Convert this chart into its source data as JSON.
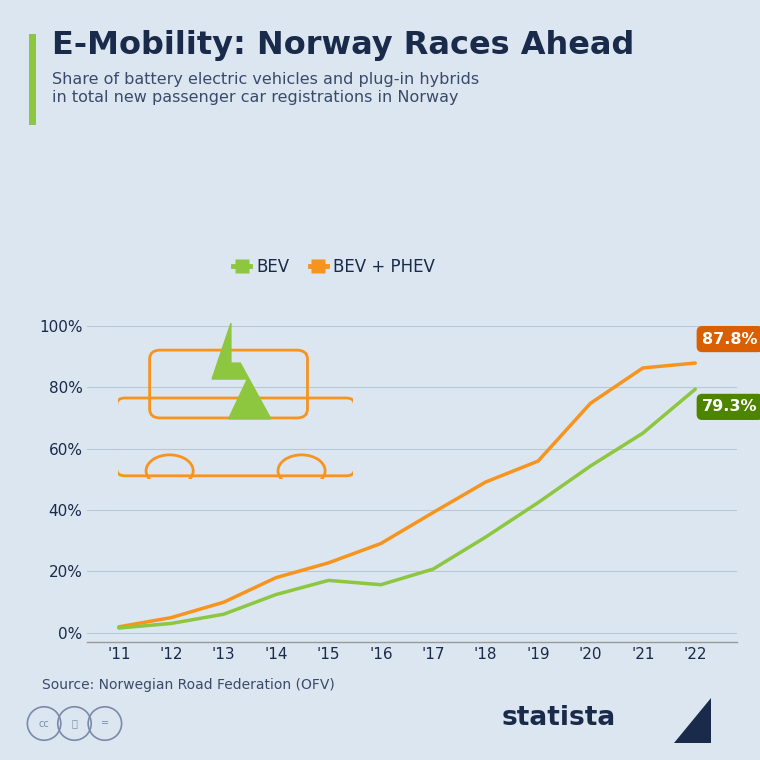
{
  "title": "E-Mobility: Norway Races Ahead",
  "subtitle_line1": "Share of battery electric vehicles and plug-in hybrids",
  "subtitle_line2": "in total new passenger car registrations in Norway",
  "source": "Source: Norwegian Road Federation (OFV)",
  "years": [
    2011,
    2012,
    2013,
    2014,
    2015,
    2016,
    2017,
    2018,
    2019,
    2020,
    2021,
    2022
  ],
  "year_labels": [
    "'11",
    "'12",
    "'13",
    "'14",
    "'15",
    "'16",
    "'17",
    "'18",
    "'19",
    "'20",
    "'21",
    "'22"
  ],
  "bev": [
    1.6,
    3.1,
    6.1,
    12.5,
    17.1,
    15.7,
    20.8,
    31.2,
    42.4,
    54.3,
    65.0,
    79.3
  ],
  "bev_phev": [
    2.0,
    5.0,
    10.0,
    18.0,
    22.8,
    29.1,
    39.2,
    49.1,
    55.9,
    74.7,
    86.2,
    87.8
  ],
  "bev_color": "#8dc63f",
  "bev_phev_color": "#f7941d",
  "bev_label": "BEV",
  "bev_phev_label": "BEV + PHEV",
  "bev_end_label": "79.3%",
  "bev_phev_end_label": "87.8%",
  "bev_end_color": "#4e8500",
  "bev_phev_end_color": "#d95f00",
  "background_color": "#dce6f0",
  "plot_bg_color": "#dce6f0",
  "title_color": "#1a2a4a",
  "subtitle_color": "#3a4a6a",
  "ylabel_values": [
    0,
    20,
    40,
    60,
    80,
    100
  ],
  "ylabel_labels": [
    "0%",
    "20%",
    "40%",
    "60%",
    "80%",
    "100%"
  ],
  "accent_bar_color": "#8dc63f",
  "line_width": 2.5,
  "car_color": "#f7941d",
  "bolt_color": "#8dc63f"
}
